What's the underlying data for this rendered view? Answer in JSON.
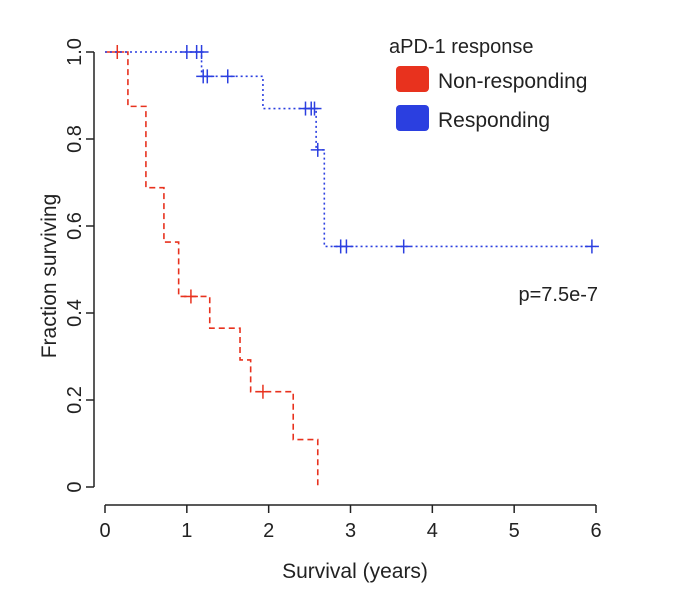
{
  "chart_data": {
    "type": "line",
    "subtype": "kaplan-meier",
    "xlabel": "Survival (years)",
    "ylabel": "Fraction surviving",
    "xlim": [
      0,
      6
    ],
    "ylim": [
      0,
      1
    ],
    "xticks": [
      0,
      1,
      2,
      3,
      4,
      5,
      6
    ],
    "yticks": [
      0,
      0.2,
      0.4,
      0.6,
      0.8,
      1.0
    ],
    "ytick_labels": [
      "0",
      "0.2",
      "0.4",
      "0.6",
      "0.8",
      "1.0"
    ],
    "legend_title": "aPD-1 response",
    "legend_position": "top-right",
    "annotation": "p=7.5e-7",
    "series": [
      {
        "name": "Non-responding",
        "color": "#e8321e",
        "style": "dashed",
        "steps": [
          [
            0,
            1.0
          ],
          [
            0.28,
            0.875
          ],
          [
            0.5,
            0.688
          ],
          [
            0.72,
            0.563
          ],
          [
            0.9,
            0.438
          ],
          [
            1.28,
            0.365
          ],
          [
            1.65,
            0.292
          ],
          [
            1.78,
            0.219
          ],
          [
            2.3,
            0.109
          ],
          [
            2.6,
            0.0
          ]
        ],
        "censored": [
          [
            0.15,
            1.0
          ],
          [
            1.05,
            0.438
          ],
          [
            1.93,
            0.219
          ]
        ]
      },
      {
        "name": "Responding",
        "color": "#2b3fe0",
        "style": "dotted",
        "steps": [
          [
            0,
            1.0
          ],
          [
            1.18,
            0.944
          ],
          [
            1.93,
            0.87
          ],
          [
            2.58,
            0.775
          ],
          [
            2.68,
            0.553
          ],
          [
            6.0,
            0.553
          ]
        ],
        "censored": [
          [
            1.0,
            1.0
          ],
          [
            1.12,
            1.0
          ],
          [
            1.18,
            1.0
          ],
          [
            1.2,
            0.944
          ],
          [
            1.25,
            0.944
          ],
          [
            1.5,
            0.944
          ],
          [
            2.45,
            0.87
          ],
          [
            2.52,
            0.87
          ],
          [
            2.56,
            0.87
          ],
          [
            2.6,
            0.775
          ],
          [
            2.88,
            0.553
          ],
          [
            2.95,
            0.553
          ],
          [
            3.65,
            0.553
          ],
          [
            5.95,
            0.553
          ]
        ]
      }
    ]
  }
}
